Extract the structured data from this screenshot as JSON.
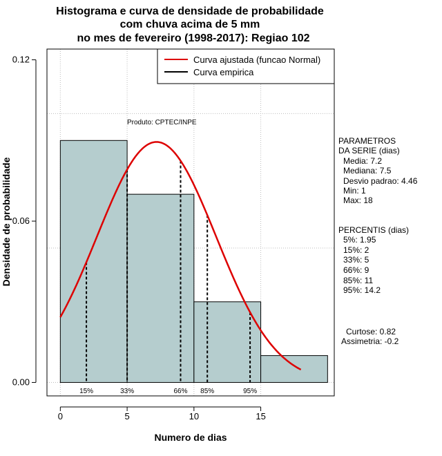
{
  "chart_data": {
    "type": "bar",
    "title_lines": [
      "Histograma e curva de densidade de probabilidade",
      "com chuva acima de 5 mm",
      "no mes de fevereiro (1998-2017): Regiao 102"
    ],
    "xlabel": "Numero de dias",
    "ylabel": "Densidade de probabilidade",
    "xlim": [
      -1,
      20.5
    ],
    "ylim": [
      -0.005,
      0.124
    ],
    "x_ticks": [
      0,
      5,
      10,
      15
    ],
    "x_tick_labels": [
      "0",
      "5",
      "10",
      "15"
    ],
    "y_ticks": [
      0.0,
      0.06,
      0.12
    ],
    "y_tick_labels": [
      "0.00",
      "0.06",
      "0.12"
    ],
    "grid": true,
    "grid_x": [
      0,
      5,
      10,
      15
    ],
    "grid_y": [
      0.0,
      0.05,
      0.1
    ],
    "bins": [
      {
        "start": 0,
        "end": 5,
        "value": 0.09
      },
      {
        "start": 5,
        "end": 10,
        "value": 0.07
      },
      {
        "start": 10,
        "end": 15,
        "value": 0.03
      },
      {
        "start": 15,
        "end": 20,
        "value": 0.01
      }
    ],
    "bar_color": "#b5cdce",
    "normal_curve": {
      "name": "Curva ajustada (funcao Normal)",
      "mean": 7.2,
      "sd": 4.46,
      "x_from": 0,
      "x_to": 18,
      "color": "#dd0000"
    },
    "empirical_name": "Curva empirica",
    "percentiles": [
      {
        "x": 1.95,
        "label": "15%"
      },
      {
        "x": 5,
        "label": "33%"
      },
      {
        "x": 9,
        "label": "66%"
      },
      {
        "x": 11,
        "label": "85%"
      },
      {
        "x": 14.2,
        "label": "95%"
      }
    ],
    "annotation": "Produto: CPTEC/INPE",
    "legend_position": "top-right"
  },
  "side_panel": {
    "params_title_1": "PARAMETROS",
    "params_title_2": "DA SERIE (dias)",
    "params": [
      "Media: 7.2",
      "Mediana: 7.5",
      "Desvio padrao: 4.46",
      "Min: 1",
      "Max: 18"
    ],
    "percentis_title": "PERCENTIS (dias)",
    "percentis": [
      "5%: 1.95",
      "15%: 2",
      "33%: 5",
      "66%: 9",
      "85%: 11",
      "95%: 14.2"
    ],
    "curtose": "Curtose: 0.82",
    "assimetria": "Assimetria: -0.2"
  }
}
